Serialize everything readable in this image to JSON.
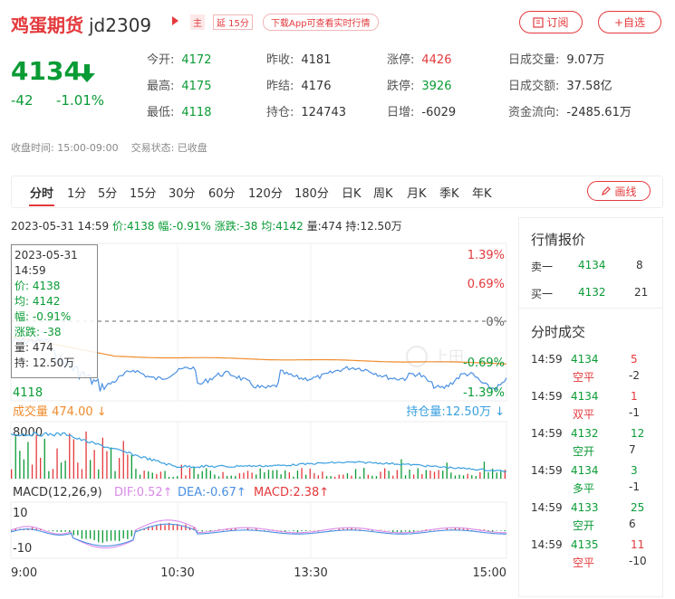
{
  "header": {
    "name": "鸡蛋期货",
    "code": "jd2309",
    "tag_main": "主",
    "tag_delay": "延 15分",
    "tag_app": "下载App可查看实时行情",
    "subscribe_label": "订阅",
    "add_label": "+自选"
  },
  "quote": {
    "price": "4134",
    "change": "-42",
    "change_pct": "-1.01%"
  },
  "stats": [
    {
      "k": "今开:",
      "v": "4172",
      "c": "green"
    },
    {
      "k": "昨收:",
      "v": "4181",
      "c": ""
    },
    {
      "k": "涨停:",
      "v": "4426",
      "c": "red"
    },
    {
      "k": "日成交量:",
      "v": "9.07万",
      "c": ""
    },
    {
      "k": "最高:",
      "v": "4175",
      "c": "green"
    },
    {
      "k": "昨结:",
      "v": "4176",
      "c": ""
    },
    {
      "k": "跌停:",
      "v": "3926",
      "c": "green"
    },
    {
      "k": "日成交额:",
      "v": "37.58亿",
      "c": ""
    },
    {
      "k": "最低:",
      "v": "4118",
      "c": "green"
    },
    {
      "k": "持仓:",
      "v": "124743",
      "c": ""
    },
    {
      "k": "日增:",
      "v": "-6029",
      "c": ""
    },
    {
      "k": "资金流向:",
      "v": "-2485.61万",
      "c": ""
    }
  ],
  "status": {
    "close_time_label": "收盘时间: 15:00-09:00",
    "trade_status_label": "交易状态: 已收盘"
  },
  "tabs": [
    "分时",
    "1分",
    "5分",
    "15分",
    "30分",
    "60分",
    "120分",
    "180分",
    "日K",
    "周K",
    "月K",
    "季K",
    "年K"
  ],
  "draw_label": "画线",
  "infoline": {
    "datetime": "2023-05-31 14:59",
    "price": "价:4138",
    "amp": "幅:-0.91%",
    "change": "涨跌:-38",
    "avg": "均:4142",
    "vol": "量:474",
    "hold": "持:12.50万"
  },
  "price_chart": {
    "right_labels": [
      "1.39%",
      "0.69%",
      "0%",
      "-0.69%",
      "-1.39%"
    ],
    "left_low": "4118",
    "watermark": "上田"
  },
  "tooltip": {
    "date": "2023-05-31",
    "time": "14:59",
    "price": "价: 4138",
    "avg": "均: 4142",
    "amp": "幅: -0.91%",
    "change": "涨跌: -38",
    "vol": "量: 474",
    "hold": "持: 12.50万"
  },
  "volume_chart": {
    "vol_label": "成交量  474.00 ↓",
    "hold_label": "持仓量:12.50万 ↓",
    "left_max": "8000"
  },
  "macd": {
    "title": "MACD(12,26,9)",
    "dif": "DIF:0.52↑",
    "dea": "DEA:-0.67↑",
    "macd": "MACD:2.38↑",
    "top": "10",
    "bottom": "-10"
  },
  "time_axis": [
    "9:00",
    "10:30",
    "13:30",
    "15:00"
  ],
  "side": {
    "quote_title": "行情报价",
    "sell1": {
      "label": "卖一",
      "price": "4134",
      "vol": "8"
    },
    "buy1": {
      "label": "买一",
      "price": "4132",
      "vol": "21"
    },
    "trades_title": "分时成交",
    "trades": [
      {
        "time": "14:59",
        "price": "4134",
        "vol": "5",
        "type": "空平",
        "chg": "-2",
        "pc": "green",
        "vc": "red",
        "tc": "red"
      },
      {
        "time": "14:59",
        "price": "4134",
        "vol": "1",
        "type": "双平",
        "chg": "-1",
        "pc": "green",
        "vc": "red",
        "tc": "red"
      },
      {
        "time": "14:59",
        "price": "4132",
        "vol": "12",
        "type": "空开",
        "chg": "7",
        "pc": "green",
        "vc": "green",
        "tc": "green"
      },
      {
        "time": "14:59",
        "price": "4134",
        "vol": "3",
        "type": "多平",
        "chg": "-1",
        "pc": "green",
        "vc": "green",
        "tc": "green"
      },
      {
        "time": "14:59",
        "price": "4133",
        "vol": "25",
        "type": "空开",
        "chg": "6",
        "pc": "green",
        "vc": "green",
        "tc": "green"
      },
      {
        "time": "14:59",
        "price": "4135",
        "vol": "11",
        "type": "空平",
        "chg": "-10",
        "pc": "green",
        "vc": "red",
        "tc": "red"
      }
    ]
  },
  "colors": {
    "red": "#e4393c",
    "green": "#0a9b35",
    "price_line": "#4a90e2",
    "avg_line": "#f08c2e",
    "hold_line": "#3aa0e0",
    "dif": "#d98ae8",
    "dea": "#4a90e2",
    "macd": "#e4393c"
  }
}
